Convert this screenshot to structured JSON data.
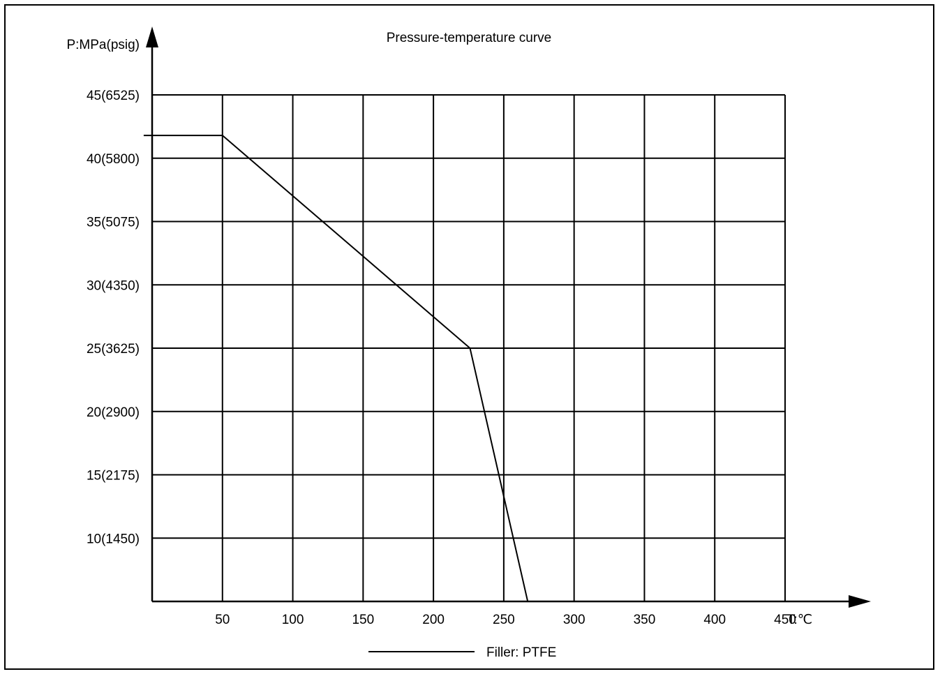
{
  "chart_data": {
    "type": "line",
    "title": "Pressure-temperature curve",
    "ylabel": "P:MPa(psig)",
    "xlabel": "T:℃",
    "xlim": [
      0,
      450
    ],
    "ylim": [
      5,
      45
    ],
    "x_ticks": [
      {
        "value": 50,
        "label": "50"
      },
      {
        "value": 100,
        "label": "100"
      },
      {
        "value": 150,
        "label": "150"
      },
      {
        "value": 200,
        "label": "200"
      },
      {
        "value": 250,
        "label": "250"
      },
      {
        "value": 300,
        "label": "300"
      },
      {
        "value": 350,
        "label": "350"
      },
      {
        "value": 400,
        "label": "400"
      },
      {
        "value": 450,
        "label": "450"
      }
    ],
    "y_ticks": [
      {
        "value": 10,
        "label": "10(1450)"
      },
      {
        "value": 15,
        "label": "15(2175)"
      },
      {
        "value": 20,
        "label": "20(2900)"
      },
      {
        "value": 25,
        "label": "25(3625)"
      },
      {
        "value": 30,
        "label": "30(4350)"
      },
      {
        "value": 35,
        "label": "35(5075)"
      },
      {
        "value": 40,
        "label": "40(5800)"
      },
      {
        "value": 45,
        "label": "45(6525)"
      }
    ],
    "grid": true,
    "legend_position": "bottom-center",
    "series": [
      {
        "name": "Filler: PTFE",
        "color": "#000000",
        "points": [
          {
            "x": -6,
            "y": 41.8
          },
          {
            "x": 50,
            "y": 41.8
          },
          {
            "x": 226,
            "y": 25
          },
          {
            "x": 267,
            "y": 5
          }
        ]
      }
    ]
  }
}
